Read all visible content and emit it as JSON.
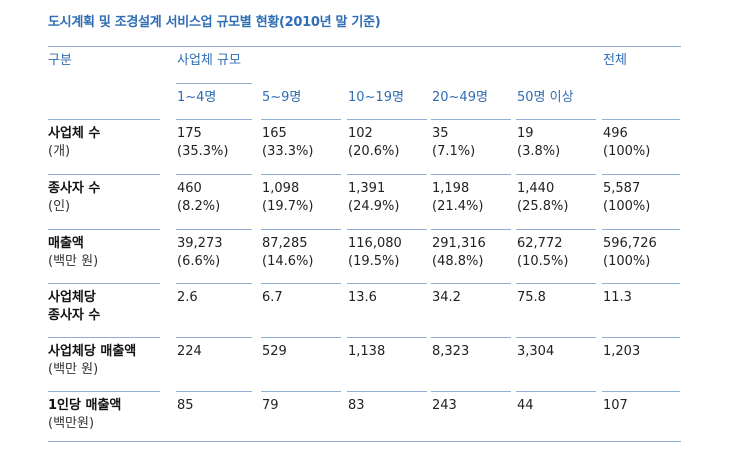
{
  "title": "도시계획 및 조경설계 서비스업 규모별 현황(2010년 말 기준)",
  "header": {
    "category": "구분",
    "group": "사업체 규모",
    "total": "전체",
    "sizes": [
      "1~4명",
      "5~9명",
      "10~19명",
      "20~49명",
      "50명 이상"
    ]
  },
  "rows": [
    {
      "label": "사업체 수",
      "sub": "(개)",
      "cells": [
        [
          "175",
          "(35.3%)"
        ],
        [
          "165",
          "(33.3%)"
        ],
        [
          "102",
          "(20.6%)"
        ],
        [
          "35",
          "(7.1%)"
        ],
        [
          "19",
          "(3.8%)"
        ],
        [
          "496",
          "(100%)"
        ]
      ]
    },
    {
      "label": "종사자 수",
      "sub": "(인)",
      "cells": [
        [
          "460",
          "(8.2%)"
        ],
        [
          "1,098",
          "(19.7%)"
        ],
        [
          "1,391",
          "(24.9%)"
        ],
        [
          "1,198",
          "(21.4%)"
        ],
        [
          "1,440",
          "(25.8%)"
        ],
        [
          "5,587",
          "(100%)"
        ]
      ]
    },
    {
      "label": "매출액",
      "sub": "(백만 원)",
      "cells": [
        [
          "39,273",
          "(6.6%)"
        ],
        [
          "87,285",
          "(14.6%)"
        ],
        [
          "116,080",
          "(19.5%)"
        ],
        [
          "291,316",
          "(48.8%)"
        ],
        [
          "62,772",
          "(10.5%)"
        ],
        [
          "596,726",
          "(100%)"
        ]
      ]
    },
    {
      "label": "사업체당",
      "label2": "종사자 수",
      "cells": [
        [
          "2.6"
        ],
        [
          "6.7"
        ],
        [
          "13.6"
        ],
        [
          "34.2"
        ],
        [
          "75.8"
        ],
        [
          "11.3"
        ]
      ]
    },
    {
      "label": "사업체당 매출액",
      "sub": "(백만 원)",
      "cells": [
        [
          "224"
        ],
        [
          "529"
        ],
        [
          "1,138"
        ],
        [
          "8,323"
        ],
        [
          "3,304"
        ],
        [
          "1,203"
        ]
      ]
    },
    {
      "label": "1인당 매출액",
      "sub": "(백만원)",
      "cells": [
        [
          "85"
        ],
        [
          "79"
        ],
        [
          "83"
        ],
        [
          "243"
        ],
        [
          "44"
        ],
        [
          "107"
        ]
      ]
    }
  ]
}
